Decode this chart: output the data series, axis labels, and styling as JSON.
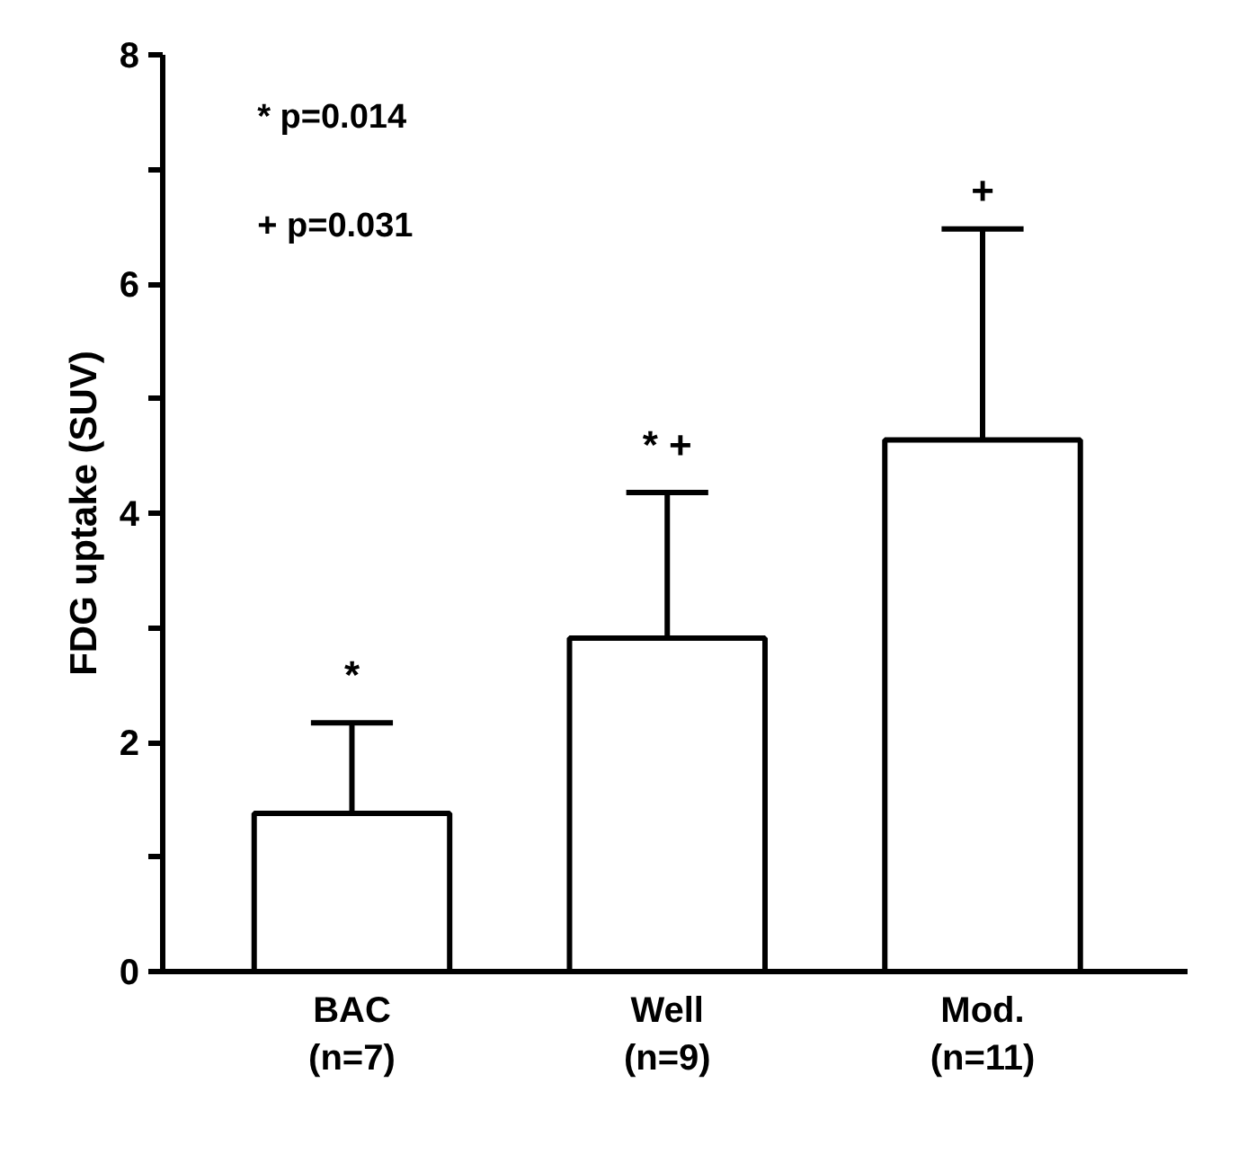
{
  "chart_data": {
    "type": "bar",
    "ylabel": "FDG uptake (SUV)",
    "categories": [
      "BAC\n(n=7)",
      "Well\n(n=9)",
      "Mod.\n(n=11)"
    ],
    "values": [
      1.38,
      2.91,
      4.64
    ],
    "errors": [
      0.79,
      1.27,
      1.84
    ],
    "color": "#ffffff",
    "ylim": [
      0,
      8
    ],
    "yticks": [
      0,
      {
        "value": 1,
        "label": null
      },
      2,
      {
        "value": 3,
        "label": null
      },
      4,
      {
        "value": 5,
        "label": null
      },
      6,
      {
        "value": 7,
        "label": null
      },
      8
    ],
    "grid": false,
    "annotations": [
      "* p=0.014",
      "+ p=0.031",
      {
        "text": "*",
        "x": "BAC\n(n=7)",
        "y": 2.17
      },
      {
        "text": "* +",
        "x": "Well\n(n=9)",
        "y": 4.18
      },
      {
        "text": "+",
        "x": "Mod.\n(n=11)",
        "y": 6.48
      }
    ]
  }
}
